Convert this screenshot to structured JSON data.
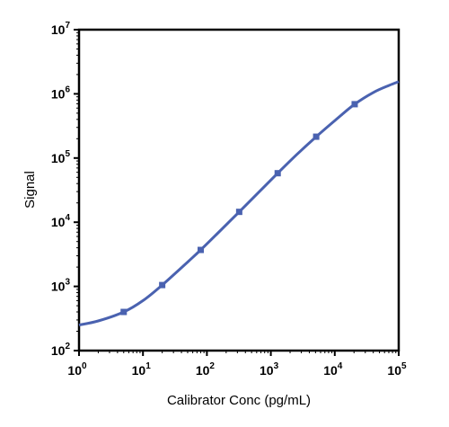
{
  "chart_data": {
    "type": "line",
    "xlabel": "Calibrator Conc (pg/mL)",
    "ylabel": "Signal",
    "xscale": "log",
    "yscale": "log",
    "xlim": [
      1,
      100000
    ],
    "ylim": [
      100,
      10000000
    ],
    "x_tick_exponents": [
      "0",
      "1",
      "2",
      "3",
      "4",
      "5"
    ],
    "y_tick_exponents": [
      "2",
      "3",
      "4",
      "5",
      "6",
      "7"
    ],
    "tick_base": "10",
    "grid": false,
    "legend": "none",
    "series": [
      {
        "color": "#4a62b0",
        "points": [
          {
            "x": 5,
            "y": 400
          },
          {
            "x": 20,
            "y": 1050
          },
          {
            "x": 80,
            "y": 3700
          },
          {
            "x": 320,
            "y": 14500
          },
          {
            "x": 1280,
            "y": 58000
          },
          {
            "x": 5120,
            "y": 215000
          },
          {
            "x": 20480,
            "y": 690000
          }
        ],
        "curve": [
          {
            "x": 1,
            "y": 250
          },
          {
            "x": 2,
            "y": 290
          },
          {
            "x": 5,
            "y": 400
          },
          {
            "x": 10,
            "y": 600
          },
          {
            "x": 20,
            "y": 1050
          },
          {
            "x": 50,
            "y": 2400
          },
          {
            "x": 80,
            "y": 3700
          },
          {
            "x": 160,
            "y": 7300
          },
          {
            "x": 320,
            "y": 14500
          },
          {
            "x": 640,
            "y": 29000
          },
          {
            "x": 1280,
            "y": 58000
          },
          {
            "x": 2560,
            "y": 114000
          },
          {
            "x": 5120,
            "y": 215000
          },
          {
            "x": 10240,
            "y": 390000
          },
          {
            "x": 20480,
            "y": 690000
          },
          {
            "x": 40000,
            "y": 1050000
          },
          {
            "x": 70000,
            "y": 1350000
          },
          {
            "x": 100000,
            "y": 1550000
          }
        ]
      }
    ]
  }
}
